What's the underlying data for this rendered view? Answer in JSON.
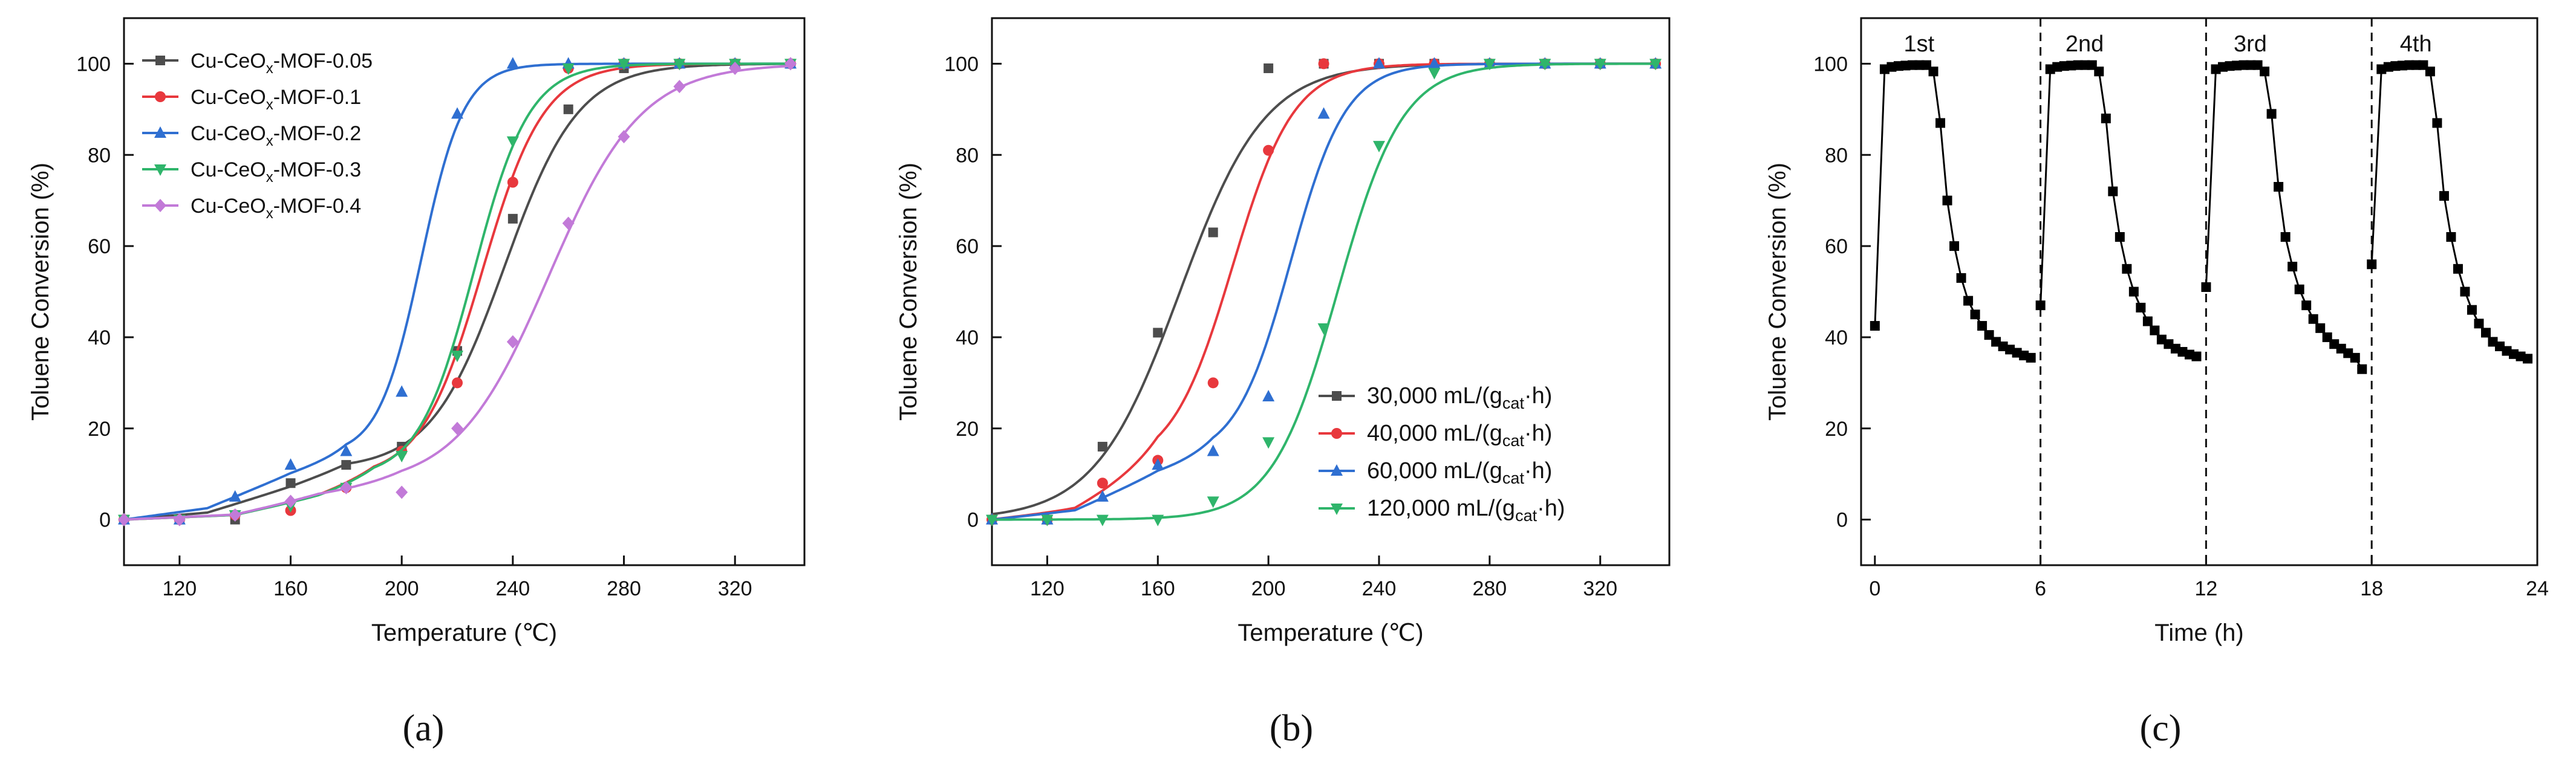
{
  "panels": [
    {
      "caption": "(a)"
    },
    {
      "caption": "(b)"
    },
    {
      "caption": "(c)"
    }
  ],
  "chart_data": [
    {
      "id": "a",
      "type": "line",
      "caption": "(a)",
      "xlabel": "Temperature (℃)",
      "ylabel": "Toluene Conversion (%)",
      "xlim": [
        100,
        345
      ],
      "ylim": [
        -10,
        110
      ],
      "xticks": [
        120,
        160,
        200,
        240,
        280,
        320
      ],
      "yticks": [
        0,
        20,
        40,
        60,
        80,
        100
      ],
      "legend_position": "top-left",
      "series": [
        {
          "name": "Cu-CeOx-MOF-0.05",
          "label_parts": [
            "Cu-CeO",
            "x",
            "-MOF-0.05"
          ],
          "color": "#4d4d4d",
          "marker": "square",
          "x": [
            100,
            120,
            140,
            160,
            180,
            200,
            220,
            240,
            260,
            280,
            300,
            320,
            340
          ],
          "y": [
            0,
            0,
            0,
            8,
            12,
            16,
            37,
            66,
            90,
            99,
            100,
            100,
            100
          ],
          "fit": {
            "x0": 237,
            "k": 0.075,
            "base": [
              [
                100,
                0
              ],
              [
                130,
                1.5
              ],
              [
                160,
                7
              ],
              [
                180,
                11
              ]
            ]
          }
        },
        {
          "name": "Cu-CeOx-MOF-0.1",
          "label_parts": [
            "Cu-CeO",
            "x",
            "-MOF-0.1"
          ],
          "color": "#e8383d",
          "marker": "circle",
          "x": [
            100,
            120,
            140,
            160,
            180,
            200,
            220,
            240,
            260,
            280,
            300,
            320,
            340
          ],
          "y": [
            0,
            0,
            1,
            2,
            7,
            15,
            30,
            74,
            99,
            100,
            100,
            100,
            100
          ],
          "fit": {
            "x0": 229,
            "k": 0.09,
            "base": [
              [
                100,
                0
              ],
              [
                140,
                1
              ],
              [
                170,
                5
              ],
              [
                190,
                9
              ]
            ]
          }
        },
        {
          "name": "Cu-CeOx-MOF-0.2",
          "label_parts": [
            "Cu-CeO",
            "x",
            "-MOF-0.2"
          ],
          "color": "#2f6fd1",
          "marker": "triangle",
          "x": [
            100,
            120,
            140,
            160,
            180,
            200,
            220,
            240,
            260,
            280,
            300,
            320,
            340
          ],
          "y": [
            0,
            0,
            5,
            12,
            15,
            28,
            89,
            100,
            100,
            100,
            100,
            100,
            100
          ],
          "fit": {
            "x0": 207,
            "k": 0.13,
            "base": [
              [
                100,
                0
              ],
              [
                130,
                2.5
              ],
              [
                160,
                10
              ],
              [
                180,
                14
              ]
            ]
          }
        },
        {
          "name": "Cu-CeOx-MOF-0.3",
          "label_parts": [
            "Cu-CeO",
            "x",
            "-MOF-0.3"
          ],
          "color": "#2fb56b",
          "marker": "triangle-down",
          "x": [
            100,
            120,
            140,
            160,
            180,
            200,
            220,
            240,
            260,
            280,
            300,
            320,
            340
          ],
          "y": [
            0,
            0,
            1,
            3,
            7,
            14,
            36,
            83,
            99,
            100,
            100,
            100,
            100
          ],
          "fit": {
            "x0": 226,
            "k": 0.1,
            "base": [
              [
                100,
                0
              ],
              [
                140,
                1
              ],
              [
                170,
                5
              ],
              [
                190,
                9
              ]
            ]
          }
        },
        {
          "name": "Cu-CeOx-MOF-0.4",
          "label_parts": [
            "Cu-CeO",
            "x",
            "-MOF-0.4"
          ],
          "color": "#c27ad8",
          "marker": "diamond",
          "x": [
            100,
            120,
            140,
            160,
            180,
            200,
            220,
            240,
            260,
            280,
            300,
            320,
            340
          ],
          "y": [
            0,
            0,
            1,
            4,
            7,
            6,
            20,
            39,
            65,
            84,
            95,
            99,
            100
          ],
          "fit": {
            "x0": 253,
            "k": 0.06,
            "base": [
              [
                100,
                0
              ],
              [
                140,
                1
              ],
              [
                170,
                5
              ],
              [
                200,
                7
              ]
            ]
          }
        }
      ]
    },
    {
      "id": "b",
      "type": "line",
      "caption": "(b)",
      "xlabel": "Temperature (℃)",
      "ylabel": "Toluene Conversion (%)",
      "xlim": [
        100,
        345
      ],
      "ylim": [
        -10,
        110
      ],
      "xticks": [
        120,
        160,
        200,
        240,
        280,
        320
      ],
      "yticks": [
        0,
        20,
        40,
        60,
        80,
        100
      ],
      "legend_position": "bottom-right",
      "series": [
        {
          "name": "30,000 mL/(gcat·h)",
          "label_parts": [
            "30,000 mL/(g",
            "cat",
            "·h)"
          ],
          "color": "#4d4d4d",
          "marker": "square",
          "x": [
            100,
            120,
            140,
            160,
            180,
            200,
            220,
            240,
            260,
            280,
            300,
            320,
            340
          ],
          "y": [
            0,
            0,
            16,
            41,
            63,
            99,
            100,
            100,
            100,
            100,
            100,
            100,
            100
          ],
          "fit": {
            "x0": 168,
            "k": 0.065
          }
        },
        {
          "name": "40,000 mL/(gcat·h)",
          "label_parts": [
            "40,000 mL/(g",
            "cat",
            "·h)"
          ],
          "color": "#e8383d",
          "marker": "circle",
          "x": [
            100,
            120,
            140,
            160,
            180,
            200,
            220,
            240,
            260,
            280,
            300,
            320,
            340
          ],
          "y": [
            0,
            0,
            8,
            13,
            30,
            81,
            100,
            100,
            100,
            100,
            100,
            100,
            100
          ],
          "fit": {
            "x0": 187,
            "k": 0.09,
            "base": [
              [
                100,
                0
              ],
              [
                130,
                2
              ],
              [
                150,
                8
              ],
              [
                160,
                11
              ]
            ]
          }
        },
        {
          "name": "60,000 mL/(gcat·h)",
          "label_parts": [
            "60,000 mL/(g",
            "cat",
            "·h)"
          ],
          "color": "#2f6fd1",
          "marker": "triangle",
          "x": [
            100,
            120,
            140,
            160,
            180,
            200,
            220,
            240,
            260,
            280,
            300,
            320,
            340
          ],
          "y": [
            0,
            0,
            5,
            12,
            15,
            27,
            89,
            100,
            100,
            100,
            100,
            100,
            100
          ],
          "fit": {
            "x0": 208,
            "k": 0.1,
            "base": [
              [
                100,
                0
              ],
              [
                130,
                2
              ],
              [
                160,
                10
              ],
              [
                180,
                13
              ]
            ]
          }
        },
        {
          "name": "120,000 mL/(gcat·h)",
          "label_parts": [
            "120,000 mL/(g",
            "cat",
            "·h)"
          ],
          "color": "#2fb56b",
          "marker": "triangle-down",
          "x": [
            100,
            120,
            140,
            160,
            180,
            200,
            220,
            240,
            260,
            280,
            300,
            320,
            340
          ],
          "y": [
            0,
            0,
            0,
            0,
            4,
            17,
            42,
            82,
            98,
            100,
            100,
            100,
            100
          ],
          "fit": {
            "x0": 225,
            "k": 0.085
          }
        }
      ]
    },
    {
      "id": "c",
      "type": "scatter",
      "caption": "(c)",
      "xlabel": "Time (h)",
      "ylabel": "Toluene Conversion (%)",
      "xlim": [
        -0.5,
        24
      ],
      "ylim": [
        -10,
        110
      ],
      "xticks": [
        0,
        6,
        12,
        18,
        24
      ],
      "yticks": [
        0,
        20,
        40,
        60,
        80,
        100
      ],
      "color": "#000000",
      "marker": "square",
      "run_boundaries": [
        6,
        12,
        18
      ],
      "runs": [
        {
          "label": "1st",
          "start": 0,
          "y": [
            42.5,
            98.8,
            99.3,
            99.5,
            99.6,
            99.7,
            99.7,
            99.7,
            98.3,
            87,
            70,
            60,
            53,
            48,
            45,
            42.5,
            40.5,
            39,
            38,
            37.3,
            36.6,
            36,
            35.5
          ]
        },
        {
          "label": "2nd",
          "start": 6,
          "y": [
            47,
            98.8,
            99.3,
            99.5,
            99.6,
            99.7,
            99.7,
            99.7,
            98.3,
            88,
            72,
            62,
            55,
            50,
            46.5,
            43.5,
            41.5,
            39.5,
            38.5,
            37.5,
            36.8,
            36.2,
            35.8
          ]
        },
        {
          "label": "3rd",
          "start": 12,
          "y": [
            51,
            98.8,
            99.3,
            99.5,
            99.6,
            99.7,
            99.7,
            99.7,
            98.3,
            89,
            73,
            62,
            55.5,
            50.5,
            47,
            44,
            42,
            40,
            38.5,
            37.5,
            36.5,
            35.5,
            33
          ]
        },
        {
          "label": "4th",
          "start": 18,
          "y": [
            56,
            98.8,
            99.3,
            99.5,
            99.6,
            99.7,
            99.7,
            99.7,
            98.3,
            87,
            71,
            62,
            55,
            50,
            46,
            43,
            41,
            39,
            38,
            37,
            36.3,
            35.8,
            35.3
          ]
        }
      ]
    }
  ]
}
